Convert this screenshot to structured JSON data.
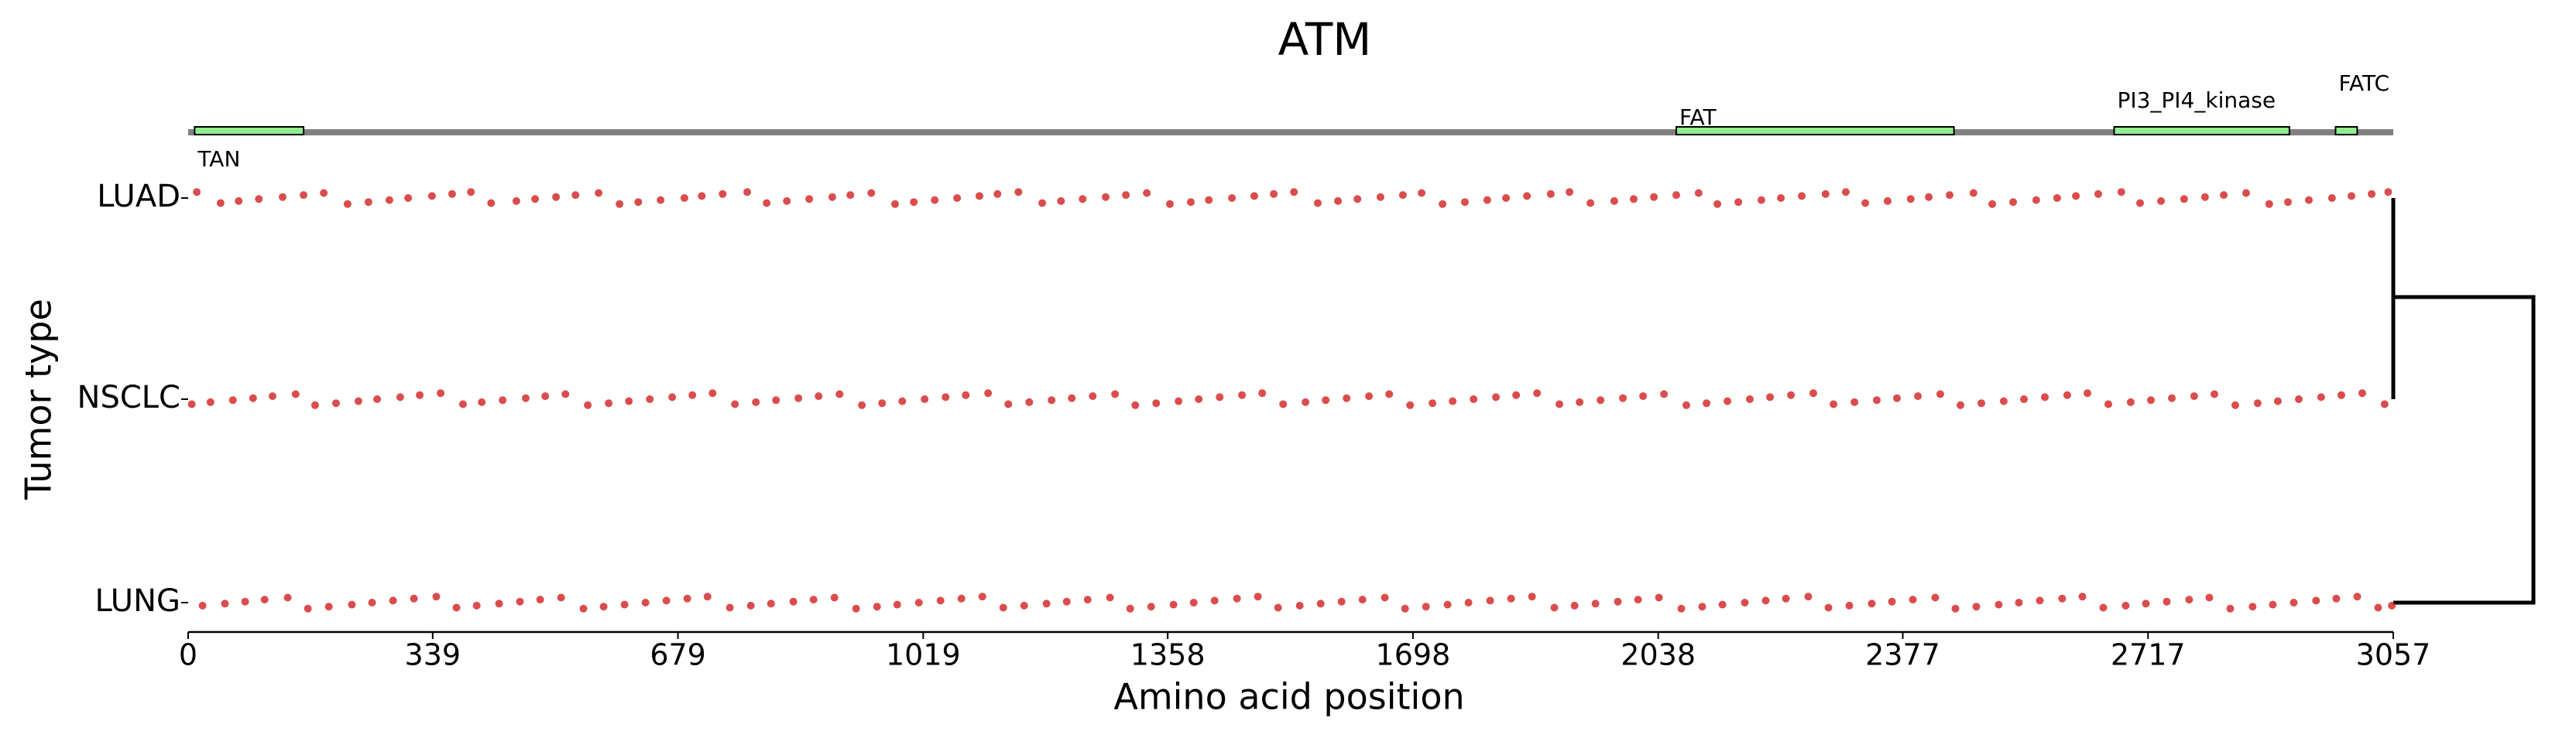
{
  "chart_data": {
    "type": "strip",
    "title": "ATM",
    "x_label": "Amino acid position",
    "y_label": "Tumor type",
    "xlim": [
      0,
      3057
    ],
    "xticks": [
      0,
      339,
      679,
      1019,
      1358,
      1698,
      2038,
      2377,
      2717,
      3057
    ],
    "categories": [
      "LUAD",
      "NSCLC",
      "LUNG"
    ],
    "series": [
      {
        "name": "LUAD",
        "color": "#cc0000",
        "values": [
          12,
          45,
          70,
          98,
          131,
          160,
          188,
          221,
          250,
          279,
          305,
          338,
          366,
          392,
          420,
          455,
          481,
          510,
          537,
          569,
          598,
          624,
          655,
          688,
          712,
          741,
          775,
          802,
          830,
          861,
          893,
          918,
          947,
          980,
          1006,
          1035,
          1066,
          1097,
          1122,
          1151,
          1184,
          1210,
          1240,
          1272,
          1300,
          1329,
          1361,
          1390,
          1415,
          1447,
          1478,
          1505,
          1533,
          1566,
          1594,
          1621,
          1653,
          1684,
          1710,
          1739,
          1770,
          1801,
          1827,
          1856,
          1889,
          1915,
          1944,
          1977,
          2004,
          2032,
          2063,
          2094,
          2120,
          2149,
          2181,
          2208,
          2237,
          2270,
          2298,
          2325,
          2356,
          2388,
          2413,
          2442,
          2475,
          2501,
          2530,
          2562,
          2591,
          2617,
          2648,
          2680,
          2706,
          2735,
          2767,
          2796,
          2822,
          2853,
          2885,
          2911,
          2940,
          2972,
          2999,
          3027,
          3050
        ]
      },
      {
        "name": "NSCLC",
        "color": "#cc0000",
        "values": [
          5,
          31,
          62,
          90,
          117,
          149,
          176,
          205,
          236,
          262,
          294,
          321,
          350,
          381,
          407,
          436,
          468,
          495,
          523,
          554,
          583,
          611,
          640,
          671,
          699,
          727,
          758,
          787,
          815,
          846,
          874,
          903,
          934,
          962,
          990,
          1021,
          1050,
          1078,
          1109,
          1137,
          1166,
          1197,
          1225,
          1254,
          1285,
          1313,
          1342,
          1373,
          1401,
          1430,
          1461,
          1489,
          1518,
          1549,
          1577,
          1606,
          1637,
          1665,
          1694,
          1725,
          1753,
          1782,
          1813,
          1841,
          1870,
          1901,
          1929,
          1958,
          1989,
          2017,
          2046,
          2077,
          2105,
          2134,
          2165,
          2193,
          2222,
          2253,
          2281,
          2310,
          2341,
          2369,
          2398,
          2429,
          2457,
          2486,
          2517,
          2545,
          2574,
          2605,
          2633,
          2662,
          2693,
          2721,
          2750,
          2781,
          2809,
          2838,
          2869,
          2897,
          2926,
          2957,
          2985,
          3014,
          3045
        ]
      },
      {
        "name": "LUNG",
        "color": "#cc0000",
        "values": [
          20,
          51,
          79,
          106,
          138,
          166,
          195,
          227,
          255,
          284,
          313,
          344,
          372,
          400,
          431,
          460,
          488,
          517,
          548,
          576,
          605,
          634,
          663,
          692,
          720,
          751,
          780,
          808,
          839,
          867,
          896,
          926,
          955,
          983,
          1013,
          1043,
          1072,
          1101,
          1130,
          1159,
          1190,
          1218,
          1247,
          1278,
          1306,
          1335,
          1366,
          1394,
          1423,
          1454,
          1483,
          1511,
          1541,
          1570,
          1599,
          1628,
          1659,
          1687,
          1716,
          1746,
          1775,
          1805,
          1834,
          1863,
          1894,
          1922,
          1951,
          1982,
          2010,
          2039,
          2070,
          2099,
          2127,
          2158,
          2187,
          2215,
          2246,
          2274,
          2303,
          2334,
          2362,
          2391,
          2422,
          2450,
          2479,
          2510,
          2538,
          2567,
          2598,
          2626,
          2655,
          2686,
          2714,
          2743,
          2774,
          2802,
          2831,
          2862,
          2890,
          2919,
          2950,
          2978,
          3007,
          3036,
          3055
        ]
      }
    ],
    "domains": [
      {
        "name": "TAN",
        "start": 9,
        "end": 160,
        "color": "#90ee90"
      },
      {
        "name": "FAT",
        "start": 2063,
        "end": 2448,
        "color": "#90ee90"
      },
      {
        "name": "PI3_PI4_kinase",
        "start": 2670,
        "end": 2913,
        "color": "#90ee90"
      },
      {
        "name": "FATC",
        "start": 2977,
        "end": 3007,
        "color": "#90ee90"
      }
    ]
  }
}
